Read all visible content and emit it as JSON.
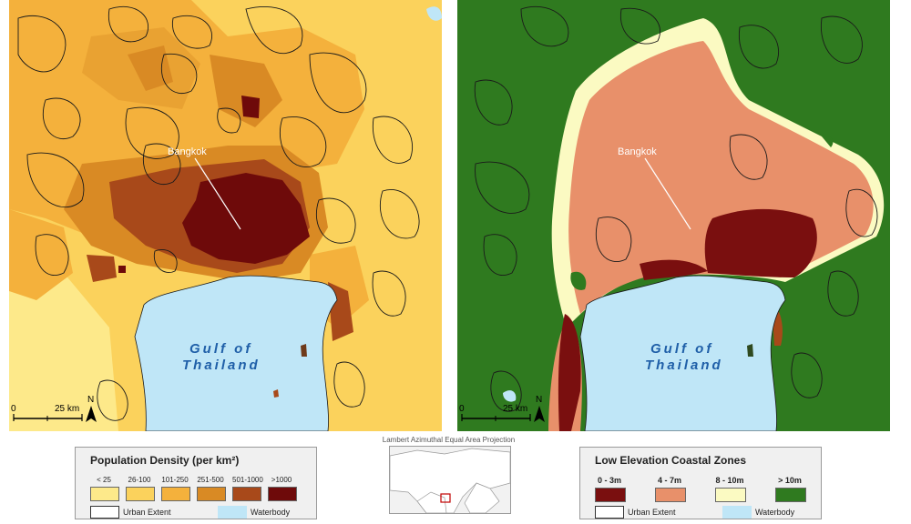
{
  "maps": {
    "left": {
      "city_label": "Bangkok",
      "gulf_line1": "Gulf of",
      "gulf_line2": "Thailand",
      "scale_zero": "0",
      "scale_label": "25 km",
      "north_label": "N"
    },
    "right": {
      "city_label": "Bangkok",
      "gulf_line1": "Gulf of",
      "gulf_line2": "Thailand",
      "scale_zero": "0",
      "scale_label": "25 km",
      "north_label": "N"
    }
  },
  "projection_label": "Lambert Azimuthal Equal Area Projection",
  "legend_population": {
    "title": "Population Density (per km²)",
    "classes": [
      {
        "label": "< 25",
        "color": "#fde98a"
      },
      {
        "label": "26-100",
        "color": "#fbd25c"
      },
      {
        "label": "101-250",
        "color": "#f4b13c"
      },
      {
        "label": "251-500",
        "color": "#d98a24"
      },
      {
        "label": "501-1000",
        "color": "#a8491a"
      },
      {
        "label": ">1000",
        "color": "#6e0a0a"
      }
    ],
    "extra": [
      {
        "label": "Urban Extent",
        "color": "#ffffff"
      },
      {
        "label": "Waterbody",
        "color": "#bfe6f7"
      }
    ]
  },
  "legend_lecz": {
    "title": "Low Elevation Coastal Zones",
    "classes": [
      {
        "label": "0 - 3m",
        "color": "#7a0f0f"
      },
      {
        "label": "4 - 7m",
        "color": "#e8906a"
      },
      {
        "label": "8 - 10m",
        "color": "#fbfac2"
      },
      {
        "label": "> 10m",
        "color": "#2f7a1f"
      }
    ],
    "extra": [
      {
        "label": "Urban Extent",
        "color": "#ffffff"
      },
      {
        "label": "Waterbody",
        "color": "#bfe6f7"
      }
    ]
  },
  "colors": {
    "water": "#bfe6f7",
    "outline": "#1a1a1a"
  }
}
